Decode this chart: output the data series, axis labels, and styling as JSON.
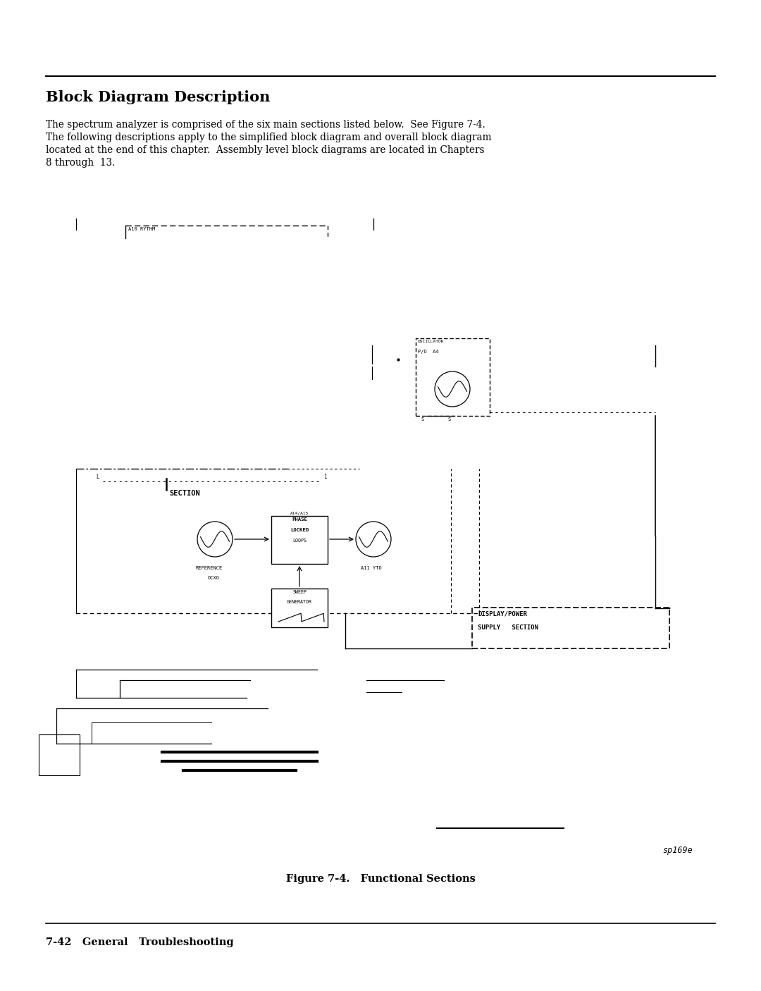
{
  "bg_color": "#ffffff",
  "title": "Block Diagram Description",
  "title_fontsize": 15,
  "body_text_line1": "The spectrum analyzer is comprised of the six main sections listed below.  See Figure 7-4.",
  "body_text_line2": "The following descriptions apply to the simplified block diagram and overall block diagram",
  "body_text_line3": "located at the end of this chapter.  Assembly level block diagrams are located in Chapters",
  "body_text_line4": "8 through  13.",
  "body_fontsize": 9.8,
  "figure_caption": "Figure 7-4.   Functional Sections",
  "caption_fontsize": 10.5,
  "footer_text": "7-42   General   Troubleshooting",
  "footer_fontsize": 10.5,
  "watermark_text": "sp169e",
  "watermark_fontsize": 8.5
}
